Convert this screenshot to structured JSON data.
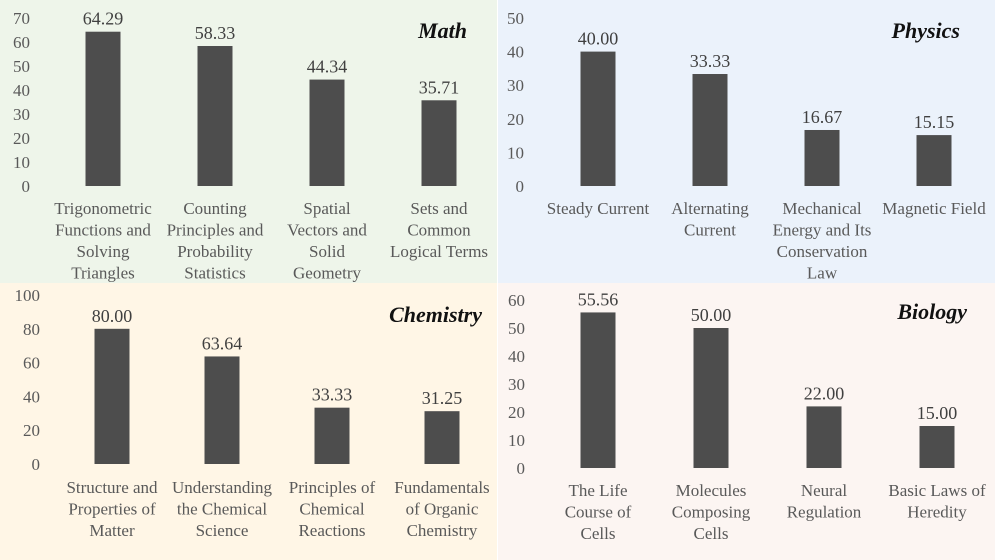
{
  "colors": {
    "bar": "#4d4d4d",
    "math_bg": "#eef5ea",
    "physics_bg": "#ebf2fb",
    "chemistry_bg": "#fff6e6",
    "biology_bg": "#fcf5f2"
  },
  "chart_data": [
    {
      "type": "bar",
      "title": "Math",
      "categories": [
        [
          "Trigonometric",
          "Functions and",
          "Solving",
          "Triangles"
        ],
        [
          "Counting",
          "Principles and",
          "Probability",
          "Statistics"
        ],
        [
          "Spatial",
          "Vectors and",
          "Solid",
          "Geometry"
        ],
        [
          "Sets and",
          "Common",
          "Logical Terms"
        ]
      ],
      "values": [
        64.29,
        58.33,
        44.34,
        35.71
      ],
      "data_labels": [
        "64.29",
        "58.33",
        "44.34",
        "35.71"
      ],
      "ylim": [
        0,
        70
      ],
      "yticks": [
        0,
        10,
        20,
        30,
        40,
        50,
        60,
        70
      ],
      "grid": false
    },
    {
      "type": "bar",
      "title": "Physics",
      "categories": [
        [
          "Steady Current"
        ],
        [
          "Alternating",
          "Current"
        ],
        [
          "Mechanical",
          "Energy and Its",
          "Conservation",
          "Law"
        ],
        [
          "Magnetic Field"
        ]
      ],
      "values": [
        40.0,
        33.33,
        16.67,
        15.15
      ],
      "data_labels": [
        "40.00",
        "33.33",
        "16.67",
        "15.15"
      ],
      "ylim": [
        0,
        50
      ],
      "yticks": [
        0,
        10,
        20,
        30,
        40,
        50
      ],
      "grid": false
    },
    {
      "type": "bar",
      "title": "Chemistry",
      "categories": [
        [
          "Structure and",
          "Properties of",
          "Matter"
        ],
        [
          "Understanding",
          "the Chemical",
          "Science"
        ],
        [
          "Principles of",
          "Chemical",
          "Reactions"
        ],
        [
          "Fundamentals",
          "of Organic",
          "Chemistry"
        ]
      ],
      "values": [
        80.0,
        63.64,
        33.33,
        31.25
      ],
      "data_labels": [
        "80.00",
        "63.64",
        "33.33",
        "31.25"
      ],
      "ylim": [
        0,
        100
      ],
      "yticks": [
        0,
        20,
        40,
        60,
        80,
        100
      ],
      "grid": false
    },
    {
      "type": "bar",
      "title": "Biology",
      "categories": [
        [
          "The Life",
          "Course of",
          "Cells"
        ],
        [
          "Molecules",
          "Composing",
          "Cells"
        ],
        [
          "Neural",
          "Regulation"
        ],
        [
          "Basic Laws of",
          "Heredity"
        ]
      ],
      "values": [
        55.56,
        50.0,
        22.0,
        15.0
      ],
      "data_labels": [
        "55.56",
        "50.00",
        "22.00",
        "15.00"
      ],
      "ylim": [
        0,
        60
      ],
      "yticks": [
        0,
        10,
        20,
        30,
        40,
        50,
        60
      ],
      "grid": false
    }
  ]
}
